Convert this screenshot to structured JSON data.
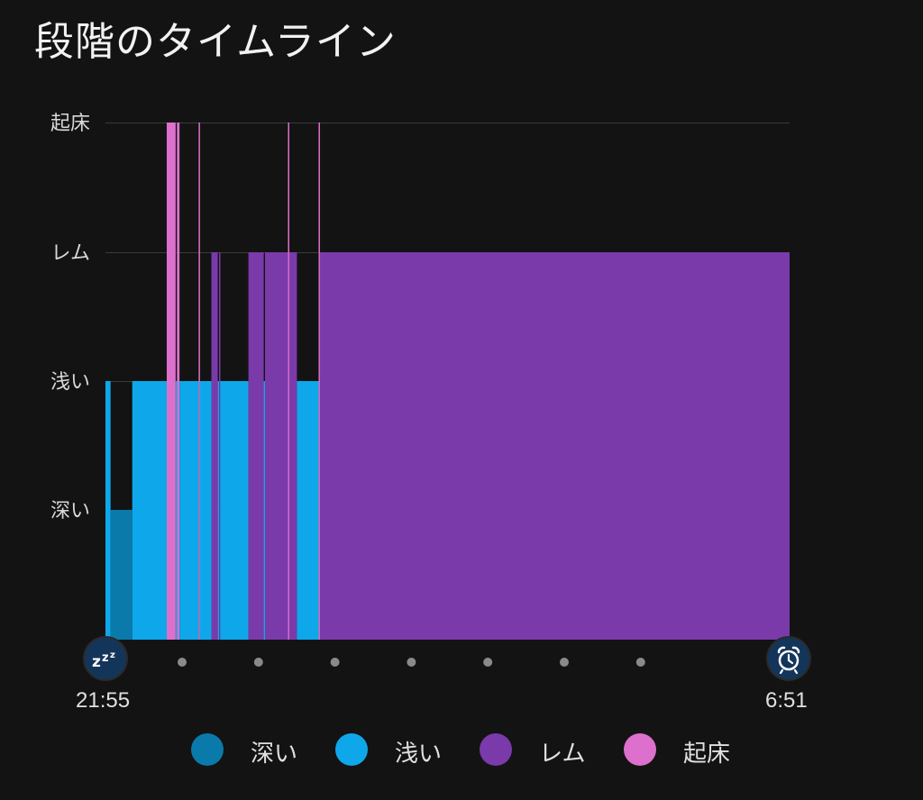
{
  "title": "段階のタイムライン",
  "start_time": "21:55",
  "end_time": "6:51",
  "icons": {
    "start": "sleep-zzz-icon",
    "end": "alarm-clock-icon"
  },
  "chart_data": {
    "type": "bar",
    "title": "段階のタイムライン",
    "stages": [
      "深い",
      "浅い",
      "レム",
      "起床"
    ],
    "x_range": [
      "21:55",
      "6:51"
    ],
    "colors": {
      "深い": "#0a7aab",
      "浅い": "#0ea8ea",
      "レム": "#7b3aaa",
      "起床": "#dd70cc"
    },
    "segments": [
      {
        "stage": "浅い",
        "start": "21:55",
        "end": "21:59"
      },
      {
        "stage": "深い",
        "start": "21:59",
        "end": "22:16"
      },
      {
        "stage": "浅い",
        "start": "22:16",
        "end": "22:43"
      },
      {
        "stage": "起床",
        "start": "22:43",
        "end": "22:50"
      },
      {
        "stage": "浅い",
        "start": "22:50",
        "end": "22:51"
      },
      {
        "stage": "起床",
        "start": "22:51",
        "end": "22:53"
      },
      {
        "stage": "浅い",
        "start": "22:53",
        "end": "23:08"
      },
      {
        "stage": "起床",
        "start": "23:08",
        "end": "23:09"
      },
      {
        "stage": "浅い",
        "start": "23:09",
        "end": "23:18"
      },
      {
        "stage": "レム",
        "start": "23:18",
        "end": "23:23"
      },
      {
        "stage": "浅い",
        "start": "23:23",
        "end": "23:24"
      },
      {
        "stage": "レム",
        "start": "23:24",
        "end": "23:25"
      },
      {
        "stage": "浅い",
        "start": "23:25",
        "end": "23:47"
      },
      {
        "stage": "レム",
        "start": "23:47",
        "end": "23:59"
      },
      {
        "stage": "浅い",
        "start": "23:59",
        "end": "0:00"
      },
      {
        "stage": "レム",
        "start": "0:00",
        "end": "0:12"
      },
      {
        "stage": "浅い",
        "start": "0:12",
        "end": "0:12"
      },
      {
        "stage": "レム",
        "start": "0:12",
        "end": "0:18"
      },
      {
        "stage": "起床",
        "start": "0:18",
        "end": "0:19"
      },
      {
        "stage": "レム",
        "start": "0:19",
        "end": "0:25"
      },
      {
        "stage": "浅い",
        "start": "0:25",
        "end": "0:42"
      },
      {
        "stage": "起床",
        "start": "0:42",
        "end": "0:43"
      },
      {
        "stage": "レム",
        "start": "0:43",
        "end": "6:51"
      }
    ],
    "legend": [
      {
        "label": "深い",
        "color": "#0a7aab"
      },
      {
        "label": "浅い",
        "color": "#0ea8ea"
      },
      {
        "label": "レム",
        "color": "#7b3aaa"
      },
      {
        "label": "起床",
        "color": "#dd70cc"
      }
    ],
    "grid": true
  }
}
